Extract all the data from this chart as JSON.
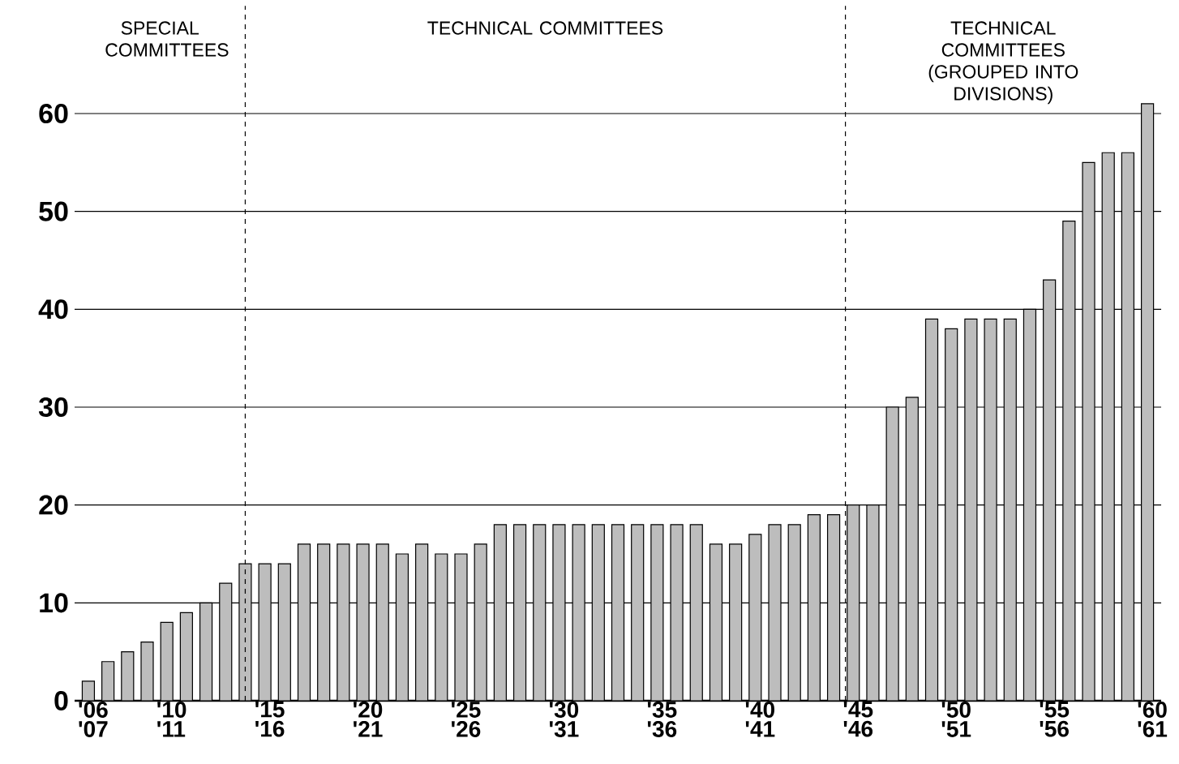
{
  "chart_data": {
    "type": "bar",
    "categories": [
      "'06 '07",
      null,
      null,
      null,
      "'10 '11",
      null,
      null,
      null,
      null,
      "'15 '16",
      null,
      null,
      null,
      null,
      "'20 '21",
      null,
      null,
      null,
      null,
      "'25 '26",
      null,
      null,
      null,
      null,
      "'30 '31",
      null,
      null,
      null,
      null,
      "'35 '36",
      null,
      null,
      null,
      null,
      "'40 '41",
      null,
      null,
      null,
      null,
      "'45 '46",
      null,
      null,
      null,
      null,
      "'50 '51",
      null,
      null,
      null,
      null,
      "'55 '56",
      null,
      null,
      null,
      null,
      "'60 '61"
    ],
    "values": [
      2,
      4,
      5,
      6,
      8,
      9,
      10,
      12,
      14,
      14,
      14,
      16,
      16,
      16,
      16,
      16,
      15,
      16,
      15,
      15,
      16,
      18,
      18,
      18,
      18,
      18,
      18,
      18,
      18,
      18,
      18,
      18,
      16,
      16,
      17,
      18,
      18,
      19,
      19,
      20,
      20,
      30,
      31,
      39,
      38,
      39,
      39,
      39,
      40,
      43,
      49,
      55,
      56,
      56,
      61
    ],
    "color": "#bdbdbd",
    "ylim": [
      0,
      71
    ],
    "yticks": [
      0,
      10,
      20,
      30,
      40,
      50,
      60
    ],
    "grid": "y",
    "annotations": [
      "SPECIAL COMMITTEES",
      "TECHNICAL COMMITTEES",
      "TECHNICAL COMMITTEES (GROUPED INTO DIVISIONS)"
    ]
  }
}
